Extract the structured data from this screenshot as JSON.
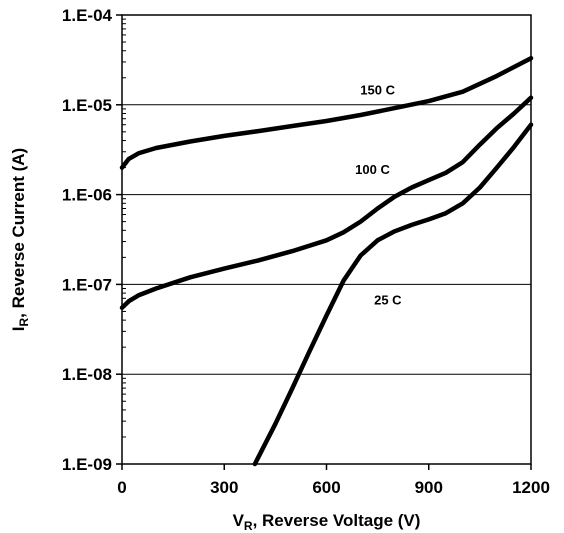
{
  "chart_data": {
    "type": "line",
    "title": "",
    "xlabel": {
      "main": "V",
      "sub": "R",
      "rest": ", Reverse Voltage (V)"
    },
    "ylabel": {
      "main": "I",
      "sub": "R",
      "rest": ", Reverse Current (A)"
    },
    "xlim": [
      0,
      1200
    ],
    "ylim": [
      1e-09,
      0.0001
    ],
    "yscale": "log",
    "xticks": [
      0,
      300,
      600,
      900,
      1200
    ],
    "xtick_labels": [
      "0",
      "300",
      "600",
      "900",
      "1200"
    ],
    "yticks": [
      1e-09,
      1e-08,
      1e-07,
      1e-06,
      1e-05,
      0.0001
    ],
    "ytick_labels": [
      "1.E-09",
      "1.E-08",
      "1.E-07",
      "1.E-06",
      "1.E-05",
      "1.E-04"
    ],
    "grid": "horizontal-major",
    "series": [
      {
        "name": "150 C",
        "x": [
          0,
          20,
          50,
          100,
          200,
          300,
          400,
          500,
          600,
          700,
          800,
          900,
          1000,
          1100,
          1200
        ],
        "y": [
          2e-06,
          2.5e-06,
          2.9e-06,
          3.3e-06,
          3.9e-06,
          4.5e-06,
          5.1e-06,
          5.8e-06,
          6.6e-06,
          7.7e-06,
          9.2e-06,
          1.1e-05,
          1.4e-05,
          2.1e-05,
          3.3e-05
        ]
      },
      {
        "name": "100 C",
        "x": [
          0,
          20,
          50,
          100,
          200,
          300,
          400,
          500,
          600,
          650,
          700,
          750,
          800,
          850,
          900,
          950,
          1000,
          1050,
          1100,
          1150,
          1200
        ],
        "y": [
          5.5e-08,
          6.5e-08,
          7.6e-08,
          9e-08,
          1.2e-07,
          1.5e-07,
          1.85e-07,
          2.35e-07,
          3.1e-07,
          3.8e-07,
          5e-07,
          7e-07,
          9.5e-07,
          1.2e-06,
          1.45e-06,
          1.75e-06,
          2.3e-06,
          3.6e-06,
          5.5e-06,
          8e-06,
          1.2e-05
        ]
      },
      {
        "name": "25 C",
        "x": [
          390,
          450,
          500,
          550,
          600,
          650,
          700,
          750,
          800,
          850,
          900,
          950,
          1000,
          1050,
          1100,
          1150,
          1200
        ],
        "y": [
          1e-09,
          2.8e-09,
          7e-09,
          1.8e-08,
          4.5e-08,
          1.1e-07,
          2.1e-07,
          3.1e-07,
          3.9e-07,
          4.6e-07,
          5.3e-07,
          6.2e-07,
          8e-07,
          1.2e-06,
          2e-06,
          3.4e-06,
          6e-06
        ]
      }
    ],
    "annotations": [
      {
        "text": "150 C",
        "x": 750,
        "y": 1.3e-05
      },
      {
        "text": "100 C",
        "x": 735,
        "y": 1.7e-06
      },
      {
        "text": "25 C",
        "x": 780,
        "y": 6e-08
      }
    ]
  }
}
